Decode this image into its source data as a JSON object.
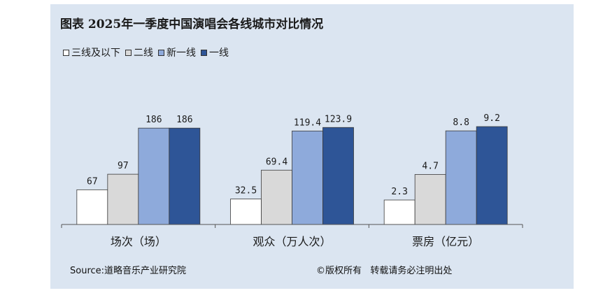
{
  "chart_data": {
    "type": "bar",
    "title": "图表  2025年一季度中国演唱会各线城市对比情况",
    "categories": [
      "场次（场）",
      "观众（万人次）",
      "票房（亿元）"
    ],
    "series": [
      {
        "name": "三线及以下",
        "color": "#ffffff",
        "values": [
          67,
          32.5,
          2.3
        ],
        "labels": [
          "67",
          "32.5",
          "2.3"
        ]
      },
      {
        "name": "二线",
        "color": "#d9d9d9",
        "values": [
          97,
          69.4,
          4.7
        ],
        "labels": [
          "97",
          "69.4",
          "4.7"
        ]
      },
      {
        "name": "新一线",
        "color": "#8eaadb",
        "values": [
          186,
          119.4,
          8.8
        ],
        "labels": [
          "186",
          "119.4",
          "8.8"
        ]
      },
      {
        "name": "一线",
        "color": "#2e5597",
        "values": [
          186,
          123.9,
          9.2
        ],
        "labels": [
          "186",
          "123.9",
          "9.2"
        ]
      }
    ],
    "category_max": [
      193,
      127.7,
      9.4
    ],
    "legend_position": "top-left",
    "grid": false
  },
  "footer": {
    "source": "Source:道略音乐产业研究院",
    "copyright": "©版权所有   转载请务必注明出处"
  }
}
